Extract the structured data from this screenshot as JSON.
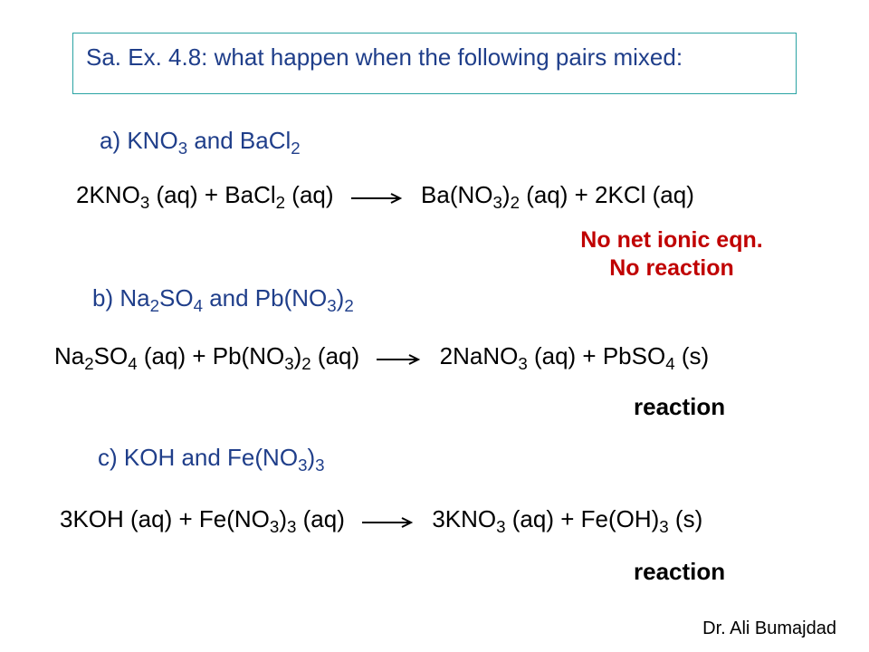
{
  "title": "Sa. Ex. 4.8: what happen when the following pairs mixed:",
  "colors": {
    "title_text": "#1f3e8a",
    "title_border": "#2aa3a3",
    "body_text": "#000000",
    "emphasis_red": "#c00000",
    "background": "#ffffff"
  },
  "font_sizes": {
    "title": 26,
    "label": 26,
    "equation": 26,
    "note": 25,
    "author": 20
  },
  "parts": {
    "a": {
      "label_html": "a) KNO<sub>3</sub> and BaCl<sub>2</sub>",
      "lhs_html": "2KNO<sub>3</sub> (aq) + BaCl<sub>2</sub> (aq)",
      "rhs_html": "Ba(NO<sub>3</sub>)<sub>2</sub> (aq) + 2KCl (aq)",
      "note_line1": "No net ionic eqn.",
      "note_line2": "No reaction"
    },
    "b": {
      "label_html": "b) Na<sub>2</sub>SO<sub>4</sub> and Pb(NO<sub>3</sub>)<sub>2</sub>",
      "lhs_html": "Na<sub>2</sub>SO<sub>4</sub> (aq) + Pb(NO<sub>3</sub>)<sub>2</sub> (aq)",
      "rhs_html": "2NaNO<sub>3</sub> (aq) + PbSO<sub>4</sub> (s)",
      "note": "reaction"
    },
    "c": {
      "label_html": "c) KOH and Fe(NO<sub>3</sub>)<sub>3</sub>",
      "lhs_html": "3KOH (aq) + Fe(NO<sub>3</sub>)<sub>3</sub> (aq)",
      "rhs_html": "3KNO<sub>3</sub> (aq) + Fe(OH)<sub>3</sub> (s)",
      "note": "reaction"
    }
  },
  "arrow": {
    "length": 56,
    "stroke": "#000000",
    "stroke_width": 2
  },
  "author": "Dr. Ali Bumajdad"
}
